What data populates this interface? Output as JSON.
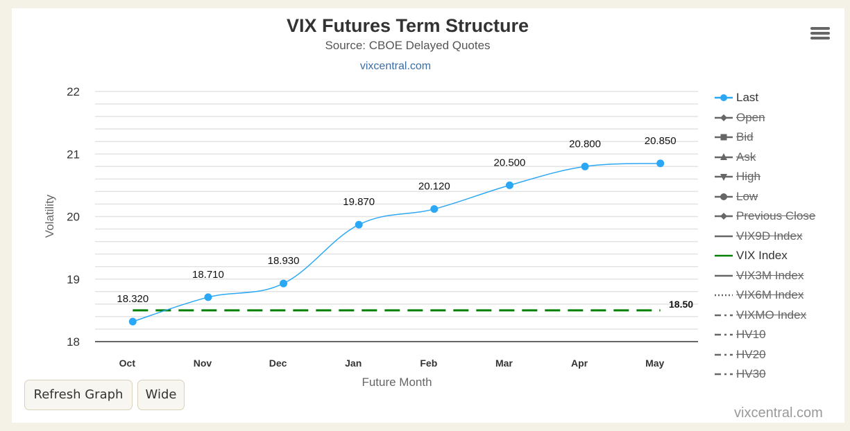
{
  "header": {
    "title": "VIX Futures Term Structure",
    "subtitle": "Source: CBOE Delayed Quotes",
    "link": "vixcentral.com"
  },
  "buttons": {
    "refresh": "Refresh Graph",
    "wide": "Wide"
  },
  "credit": "vixcentral.com",
  "colors": {
    "last_series": "#2ba8f5",
    "vix_index": "#008000",
    "hidden_series": "#666666",
    "background": "#f4f1e6"
  },
  "legend": [
    {
      "label": "Last",
      "visible": true,
      "symbol": "circle-line"
    },
    {
      "label": "Open",
      "visible": false,
      "symbol": "diamond-line"
    },
    {
      "label": "Bid",
      "visible": false,
      "symbol": "square-line"
    },
    {
      "label": "Ask",
      "visible": false,
      "symbol": "triangle-line"
    },
    {
      "label": "High",
      "visible": false,
      "symbol": "triangle-down-line"
    },
    {
      "label": "Low",
      "visible": false,
      "symbol": "circle-line"
    },
    {
      "label": "Previous Close",
      "visible": false,
      "symbol": "diamond-line"
    },
    {
      "label": "VIX9D Index",
      "visible": false,
      "symbol": "solid-line"
    },
    {
      "label": "VIX Index",
      "visible": true,
      "symbol": "solid-line"
    },
    {
      "label": "VIX3M Index",
      "visible": false,
      "symbol": "solid-line"
    },
    {
      "label": "VIX6M Index",
      "visible": false,
      "symbol": "dotted-line"
    },
    {
      "label": "VIXMO Index",
      "visible": false,
      "symbol": "dash-dot-line"
    },
    {
      "label": "HV10",
      "visible": false,
      "symbol": "dash-dot-line"
    },
    {
      "label": "HV20",
      "visible": false,
      "symbol": "dash-dot-line"
    },
    {
      "label": "HV30",
      "visible": false,
      "symbol": "dash-dot-line"
    }
  ],
  "chart_data": {
    "type": "line",
    "title": "VIX Futures Term Structure",
    "subtitle": "Source: CBOE Delayed Quotes",
    "xlabel": "Future Month",
    "ylabel": "Volatility",
    "categories": [
      "Oct",
      "Nov",
      "Dec",
      "Jan",
      "Feb",
      "Mar",
      "Apr",
      "May"
    ],
    "ylim": [
      18,
      22
    ],
    "yticks": [
      18,
      19,
      20,
      21,
      22
    ],
    "minor_grid_step": 0.2,
    "grid": true,
    "legend_position": "right",
    "series": [
      {
        "name": "Last",
        "values": [
          18.32,
          18.71,
          18.93,
          19.87,
          20.12,
          20.5,
          20.8,
          20.85
        ],
        "labels": [
          "18.320",
          "18.710",
          "18.930",
          "19.870",
          "20.120",
          "20.500",
          "20.800",
          "20.850"
        ],
        "style": "smooth line with markers"
      },
      {
        "name": "VIX Index",
        "values": [
          18.5,
          18.5,
          18.5,
          18.5,
          18.5,
          18.5,
          18.5,
          18.5
        ],
        "end_label": "18.50",
        "style": "dashed"
      }
    ]
  }
}
